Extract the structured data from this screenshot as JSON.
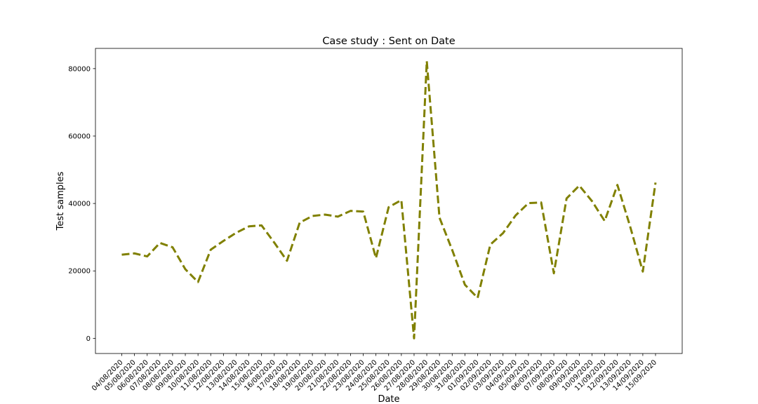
{
  "chart_data": {
    "type": "line",
    "title": "Case study : Sent on Date",
    "xlabel": "Date",
    "ylabel": "Test samples",
    "ylim": [
      -4500,
      86000
    ],
    "yticks": [
      0,
      20000,
      40000,
      60000,
      80000
    ],
    "grid": false,
    "categories": [
      "04/08/2020",
      "05/08/2020",
      "06/08/2020",
      "07/08/2020",
      "08/08/2020",
      "09/08/2020",
      "10/08/2020",
      "11/08/2020",
      "12/08/2020",
      "13/08/2020",
      "14/08/2020",
      "15/08/2020",
      "16/08/2020",
      "17/08/2020",
      "18/08/2020",
      "19/08/2020",
      "20/08/2020",
      "21/08/2020",
      "22/08/2020",
      "23/08/2020",
      "24/08/2020",
      "25/08/2020",
      "26/08/2020",
      "27/08/2020",
      "28/08/2020",
      "29/08/2020",
      "30/08/2020",
      "31/08/2020",
      "01/09/2020",
      "02/09/2020",
      "03/09/2020",
      "04/09/2020",
      "05/09/2020",
      "06/09/2020",
      "07/09/2020",
      "08/09/2020",
      "09/09/2020",
      "10/09/2020",
      "11/09/2020",
      "12/09/2020",
      "13/09/2020",
      "14/09/2020",
      "15/09/2020"
    ],
    "series": [
      {
        "color": "#808000",
        "line_style": "dashed",
        "values": [
          24800,
          25200,
          24300,
          28300,
          27000,
          20500,
          16700,
          26300,
          28900,
          31300,
          33200,
          33500,
          28400,
          23000,
          34300,
          36300,
          36700,
          36100,
          37800,
          37600,
          23800,
          38900,
          41000,
          0,
          82200,
          35800,
          26200,
          15900,
          12000,
          27800,
          31200,
          36500,
          40100,
          40300,
          19300,
          41500,
          45300,
          40700,
          34800,
          45500,
          33200,
          19800,
          46200
        ]
      }
    ]
  }
}
